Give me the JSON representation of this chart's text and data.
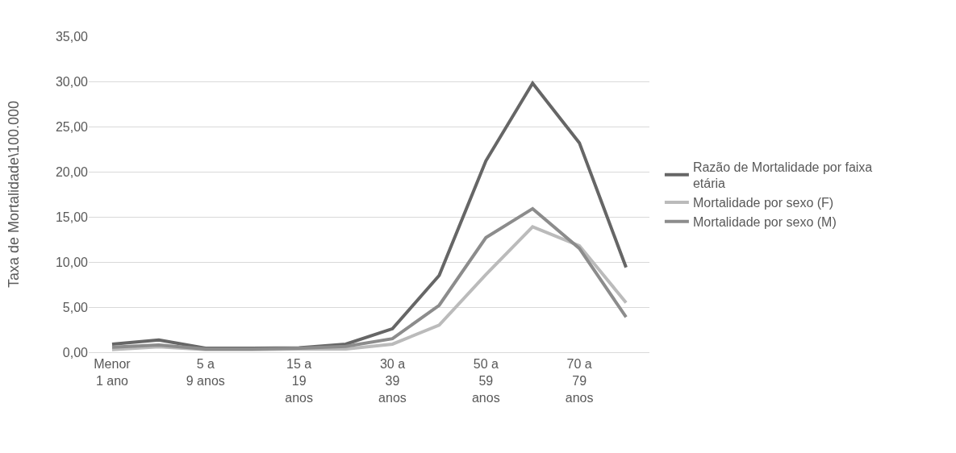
{
  "chart_data": {
    "type": "line",
    "ylabel": "Taxa de Mortalidade\\100.000",
    "categories": [
      "Menor 1 ano",
      null,
      "5 a 9 anos",
      null,
      "15 a 19 anos",
      null,
      "30 a 39 anos",
      null,
      "50 a 59 anos",
      null,
      "70 a 79 anos",
      null
    ],
    "series": [
      {
        "name": "Razão de Mortalidade por faixa etária",
        "color": "#666666",
        "values": [
          0.9,
          1.35,
          0.45,
          0.45,
          0.5,
          0.9,
          2.6,
          8.5,
          21.2,
          29.8,
          23.2,
          9.4
        ]
      },
      {
        "name": "Mortalidade por sexo (F)",
        "color": "#bbbbbb",
        "values": [
          0.3,
          0.6,
          0.3,
          0.3,
          0.35,
          0.35,
          0.9,
          3.0,
          8.6,
          13.9,
          11.8,
          5.5
        ]
      },
      {
        "name": "Mortalidade por sexo (M)",
        "color": "#8c8c8c",
        "values": [
          0.55,
          0.8,
          0.35,
          0.35,
          0.45,
          0.65,
          1.5,
          5.2,
          12.7,
          15.9,
          11.5,
          3.9
        ]
      }
    ],
    "ylim": [
      0,
      35
    ],
    "yticks": [
      {
        "value": 0,
        "label": "0,00"
      },
      {
        "value": 5,
        "label": "5,00"
      },
      {
        "value": 10,
        "label": "10,00"
      },
      {
        "value": 15,
        "label": "15,00"
      },
      {
        "value": 20,
        "label": "20,00"
      },
      {
        "value": 25,
        "label": "25,00"
      },
      {
        "value": 30,
        "label": "30,00"
      },
      {
        "value": 35,
        "label": "35,00"
      }
    ],
    "grid": "y",
    "legend": "right",
    "marker": "none",
    "line_style": "solid"
  }
}
